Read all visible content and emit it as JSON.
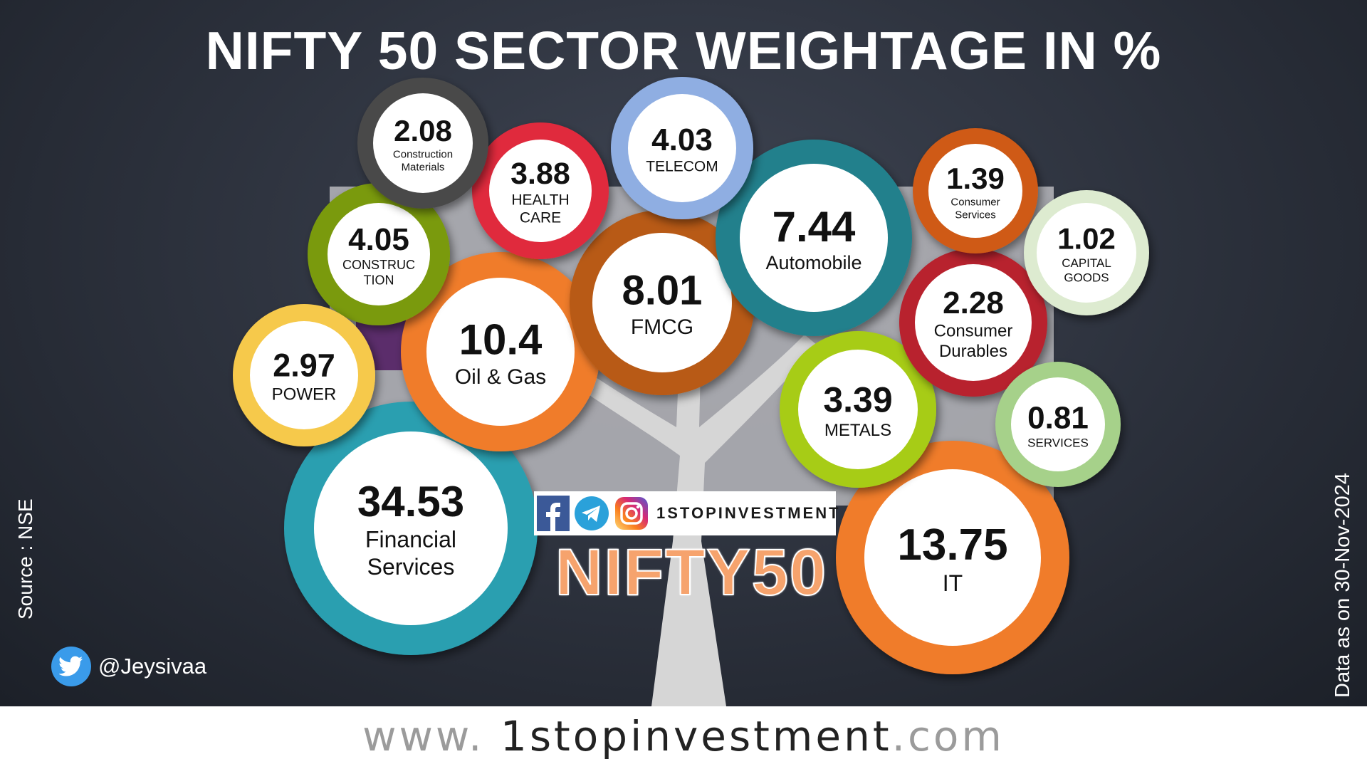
{
  "title": "NIFTY 50 SECTOR WEIGHTAGE IN %",
  "source_note": "Source : NSE",
  "date_note": "Data as on 30-Nov-2024",
  "social": {
    "handle": "@Jeysivaa",
    "icon": "twitter-bird-icon"
  },
  "brand": {
    "name": "1STOPINVESTMENT",
    "icons": [
      "facebook-icon",
      "telegram-icon",
      "instagram-icon"
    ],
    "index_word": "NIFTY50"
  },
  "website": {
    "prefix": "www. ",
    "name": "1stopinvestment",
    "suffix": ".com"
  },
  "chart_data": {
    "type": "bubble",
    "title": "NIFTY 50 SECTOR WEIGHTAGE IN %",
    "unit": "%",
    "series": [
      {
        "label": "Financial Services",
        "value": 34.53,
        "color": "#2a9fb0"
      },
      {
        "label": "IT",
        "value": 13.75,
        "color": "#f07b2c"
      },
      {
        "label": "Oil & Gas",
        "value": 10.4,
        "color": "#f07b2c"
      },
      {
        "label": "FMCG",
        "value": 8.01,
        "color": "#b85a12"
      },
      {
        "label": "Automobile",
        "value": 7.44,
        "color": "#23808c"
      },
      {
        "label": "CONSTRUCTION",
        "value": 4.05,
        "color": "#7a9a10"
      },
      {
        "label": "TELECOM",
        "value": 4.03,
        "color": "#8faee2"
      },
      {
        "label": "HEALTH CARE",
        "value": 3.88,
        "color": "#e0293c"
      },
      {
        "label": "METALS",
        "value": 3.39,
        "color": "#a7cc18"
      },
      {
        "label": "POWER",
        "value": 2.97,
        "color": "#f6c94c"
      },
      {
        "label": "Consumer Durables",
        "value": 2.28,
        "color": "#b8222e"
      },
      {
        "label": "Construction Materials",
        "value": 2.08,
        "color": "#4a4a4a"
      },
      {
        "label": "Consumer Services",
        "value": 1.39,
        "color": "#cf5a16"
      },
      {
        "label": "CAPITAL GOODS",
        "value": 1.02,
        "color": "#ddebd0"
      },
      {
        "label": "SERVICES",
        "value": 0.81,
        "color": "#a6d18a"
      }
    ]
  }
}
